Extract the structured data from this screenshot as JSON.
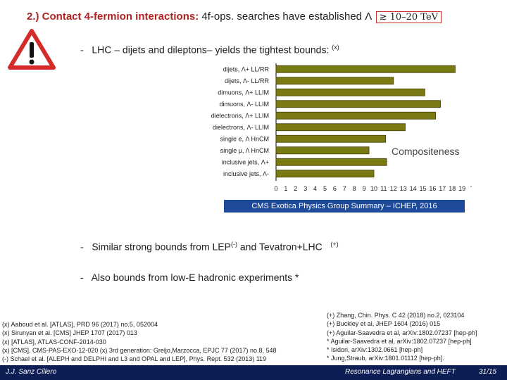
{
  "slide": {
    "title_highlight": "2.) Contact 4-fermion interactions:",
    "title_rest": " 4f-ops. searches have established",
    "title_math_lambda": "Λ",
    "title_math_value": "≳ 10–20 TeV",
    "bullet1": "LHC – dijets and dileptons– yields the tightest bounds:",
    "bullet1_mark": "(x)",
    "bullet2_pre": "Similar strong bounds from LEP",
    "bullet2_mark1": "(-)",
    "bullet2_post": " and Tevatron+LHC",
    "bullet2_mark2": "(+)",
    "bullet3": "Also bounds from low-E hadronic experiments *",
    "dash": "-"
  },
  "icons": {
    "warning": "warning-triangle-icon"
  },
  "chart_data": {
    "type": "bar",
    "orientation": "horizontal",
    "categories": [
      "dijets, Λ+ LL/RR",
      "dijets, Λ- LL/RR",
      "dimuons, Λ+ LLIM",
      "dimuons, Λ- LLIM",
      "dielectrons, Λ+ LLIM",
      "dielectrons, Λ- LLIM",
      "single e, Λ HnCM",
      "single μ, Λ HnCM",
      "inclusive jets, Λ+",
      "inclusive jets, Λ-"
    ],
    "values": [
      18.3,
      12.0,
      15.2,
      16.8,
      16.3,
      13.2,
      11.2,
      9.5,
      11.3,
      10.0
    ],
    "xticks": [
      "0",
      "1",
      "2",
      "3",
      "4",
      "5",
      "6",
      "7",
      "8",
      "9",
      "10",
      "11",
      "12",
      "13",
      "14",
      "15",
      "16",
      "17",
      "18",
      "19"
    ],
    "xunit": "TeV",
    "xlim": [
      0,
      20
    ],
    "bar_color": "#7a7a12",
    "overlay_label": "Compositeness",
    "footer": "CMS Exotica Physics Group Summary – ICHEP, 2016"
  },
  "refs_left": [
    "(x) Aaboud et al. [ATLAS], PRD 96 (2017) no.5, 052004",
    "(x) Sirunyan et al. [CMS] JHEP 1707 (2017) 013",
    "(x) [ATLAS], ATLAS-CONF-2014-030",
    "(x) [CMS], CMS-PAS-EXO-12-020 (x) 3rd generation: Greljo,Marzocca, EPJC 77 (2017) no.8, 548",
    "(-) Schael et al. [ALEPH and DELPHI and L3 and OPAL and LEP], Phys. Rept. 532 (2013) 119"
  ],
  "refs_right": [
    "(+) Zhang, Chin. Phys. C 42 (2018) no.2, 023104",
    "(+) Buckley et al, JHEP 1604 (2016) 015",
    "(+) Aguilar-Saavedra et al, arXiv:1802.07237 [hep-ph]",
    "* Aguilar-Saavedra et al, arXiv:1802.07237 [hep-ph]",
    "* Isidori, arXiv:1302.0661 [hep-ph]",
    "* Jung,Straub, arXiv:1801.01112 [hep-ph]."
  ],
  "footer": {
    "author": "J.J. Sanz Cillero",
    "talk": "Resonance Lagrangians and HEFT",
    "page": "31/15"
  }
}
